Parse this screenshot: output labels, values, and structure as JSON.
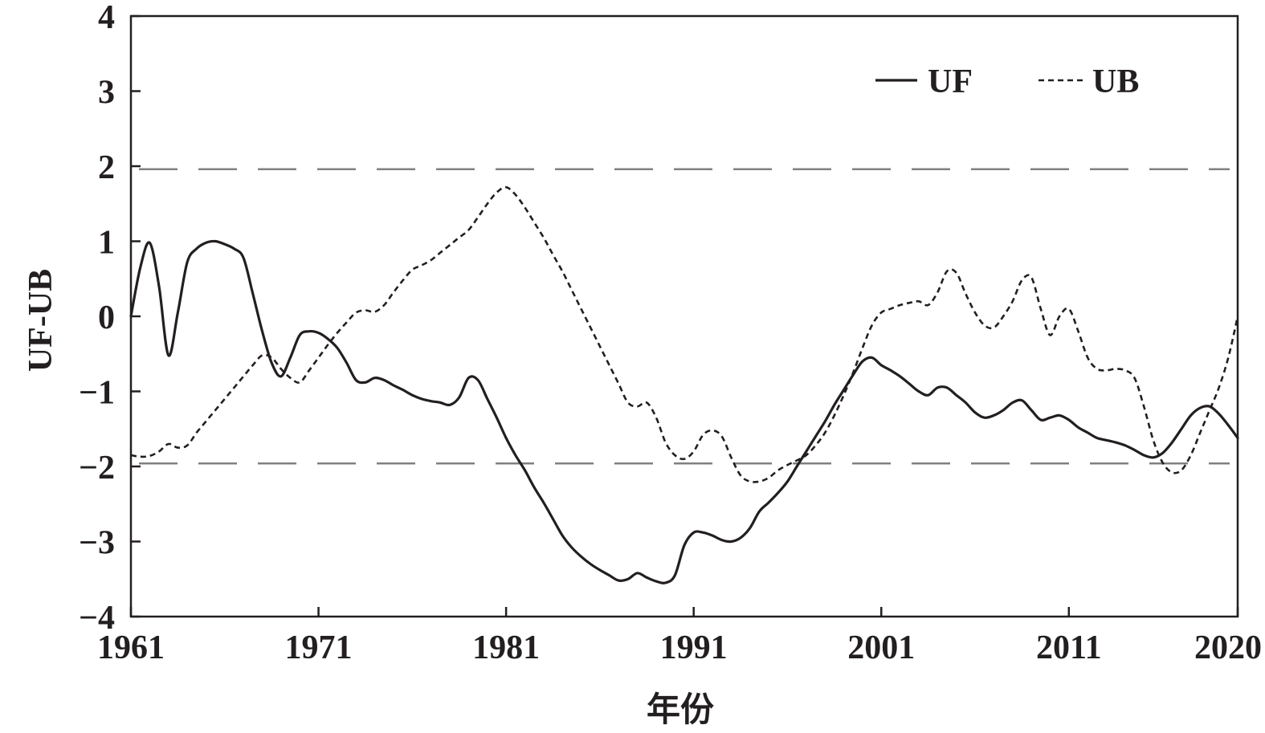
{
  "chart_data": {
    "type": "line",
    "xlabel": "年份",
    "ylabel": "UF-UB",
    "xlim": [
      1961,
      2020
    ],
    "ylim": [
      -4,
      4
    ],
    "x_ticks": [
      1961,
      1971,
      1981,
      1991,
      2001,
      2011,
      2020
    ],
    "x_tick_labels": [
      "1961",
      "1971",
      "1981",
      "1991",
      "2001",
      "2011",
      "2020"
    ],
    "y_ticks": [
      4,
      3,
      2,
      1,
      0,
      -1,
      -2,
      -3,
      -4
    ],
    "y_tick_labels": [
      "4",
      "3",
      "2",
      "1",
      "0",
      "−1",
      "−2",
      "−3",
      "−4"
    ],
    "reference_lines": [
      1.96,
      -1.96
    ],
    "legend_position": "top-right",
    "colors": {
      "series": "#231f20",
      "reference": "#808080",
      "axis": "#231f20"
    },
    "series": [
      {
        "name": "UF",
        "style": "solid",
        "x": [
          1961,
          1961.5,
          1962,
          1962.5,
          1963,
          1963.5,
          1964,
          1964.5,
          1965,
          1965.5,
          1966,
          1966.5,
          1967,
          1967.5,
          1968,
          1968.5,
          1969,
          1969.5,
          1970,
          1970.5,
          1971,
          1971.5,
          1972,
          1972.5,
          1973,
          1973.5,
          1974,
          1974.5,
          1975,
          1975.5,
          1976,
          1976.5,
          1977,
          1977.5,
          1978,
          1978.5,
          1979,
          1979.5,
          1980,
          1980.5,
          1981,
          1981.5,
          1982,
          1982.5,
          1983,
          1983.5,
          1984,
          1984.5,
          1985,
          1985.5,
          1986,
          1986.5,
          1987,
          1987.5,
          1988,
          1988.5,
          1989,
          1989.5,
          1990,
          1990.5,
          1991,
          1991.5,
          1992,
          1992.5,
          1993,
          1993.5,
          1994,
          1994.5,
          1995,
          1995.5,
          1996,
          1996.5,
          1997,
          1997.5,
          1998,
          1998.5,
          1999,
          1999.5,
          2000,
          2000.5,
          2001,
          2001.5,
          2002,
          2002.5,
          2003,
          2003.5,
          2004,
          2004.5,
          2005,
          2005.5,
          2006,
          2006.5,
          2007,
          2007.5,
          2008,
          2008.5,
          2009,
          2009.5,
          2010,
          2010.5,
          2011,
          2011.5,
          2012,
          2012.5,
          2013,
          2013.5,
          2014,
          2014.5,
          2015,
          2015.5,
          2016,
          2016.5,
          2017,
          2017.5,
          2018,
          2018.5,
          2019,
          2019.5,
          2020
        ],
        "y": [
          0.0,
          0.65,
          0.98,
          0.4,
          -0.52,
          0.05,
          0.72,
          0.9,
          0.98,
          1.0,
          0.96,
          0.9,
          0.78,
          0.3,
          -0.2,
          -0.62,
          -0.8,
          -0.55,
          -0.25,
          -0.2,
          -0.22,
          -0.3,
          -0.42,
          -0.62,
          -0.85,
          -0.88,
          -0.82,
          -0.85,
          -0.92,
          -0.98,
          -1.05,
          -1.1,
          -1.13,
          -1.15,
          -1.18,
          -1.08,
          -0.82,
          -0.85,
          -1.1,
          -1.35,
          -1.62,
          -1.85,
          -2.05,
          -2.28,
          -2.48,
          -2.7,
          -2.92,
          -3.08,
          -3.2,
          -3.3,
          -3.38,
          -3.45,
          -3.52,
          -3.5,
          -3.42,
          -3.48,
          -3.53,
          -3.55,
          -3.45,
          -3.05,
          -2.88,
          -2.88,
          -2.92,
          -2.98,
          -3.0,
          -2.95,
          -2.82,
          -2.6,
          -2.48,
          -2.35,
          -2.2,
          -2.0,
          -1.8,
          -1.6,
          -1.4,
          -1.18,
          -0.98,
          -0.78,
          -0.6,
          -0.55,
          -0.65,
          -0.72,
          -0.8,
          -0.9,
          -1.0,
          -1.05,
          -0.95,
          -0.95,
          -1.05,
          -1.15,
          -1.28,
          -1.35,
          -1.32,
          -1.25,
          -1.15,
          -1.12,
          -1.25,
          -1.38,
          -1.35,
          -1.32,
          -1.38,
          -1.48,
          -1.55,
          -1.62,
          -1.65,
          -1.68,
          -1.72,
          -1.78,
          -1.85,
          -1.88,
          -1.82,
          -1.68,
          -1.5,
          -1.32,
          -1.22,
          -1.2,
          -1.3,
          -1.45,
          -1.62
        ]
      },
      {
        "name": "UB",
        "style": "dashed",
        "x": [
          1961,
          1961.5,
          1962,
          1962.5,
          1963,
          1963.5,
          1964,
          1964.5,
          1965,
          1965.5,
          1966,
          1966.5,
          1967,
          1967.5,
          1968,
          1968.5,
          1969,
          1969.5,
          1970,
          1970.5,
          1971,
          1971.5,
          1972,
          1972.5,
          1973,
          1973.5,
          1974,
          1974.5,
          1975,
          1975.5,
          1976,
          1976.5,
          1977,
          1977.5,
          1978,
          1978.5,
          1979,
          1979.5,
          1980,
          1980.5,
          1981,
          1981.5,
          1982,
          1982.5,
          1983,
          1983.5,
          1984,
          1984.5,
          1985,
          1985.5,
          1986,
          1986.5,
          1987,
          1987.5,
          1988,
          1988.5,
          1989,
          1989.5,
          1990,
          1990.5,
          1991,
          1991.5,
          1992,
          1992.5,
          1993,
          1993.5,
          1994,
          1994.5,
          1995,
          1995.5,
          1996,
          1996.5,
          1997,
          1997.5,
          1998,
          1998.5,
          1999,
          1999.5,
          2000,
          2000.5,
          2001,
          2001.5,
          2002,
          2002.5,
          2003,
          2003.5,
          2004,
          2004.5,
          2005,
          2005.5,
          2006,
          2006.5,
          2007,
          2007.5,
          2008,
          2008.5,
          2009,
          2009.5,
          2010,
          2010.5,
          2011,
          2011.5,
          2012,
          2012.5,
          2013,
          2013.5,
          2014,
          2014.5,
          2015,
          2015.5,
          2016,
          2016.5,
          2017,
          2017.5,
          2018,
          2018.5,
          2019,
          2019.5,
          2020
        ],
        "y": [
          -1.85,
          -1.87,
          -1.86,
          -1.8,
          -1.7,
          -1.75,
          -1.72,
          -1.55,
          -1.4,
          -1.25,
          -1.1,
          -0.95,
          -0.8,
          -0.65,
          -0.52,
          -0.55,
          -0.7,
          -0.82,
          -0.88,
          -0.72,
          -0.55,
          -0.38,
          -0.22,
          -0.08,
          0.05,
          0.08,
          0.06,
          0.15,
          0.32,
          0.48,
          0.62,
          0.68,
          0.75,
          0.85,
          0.95,
          1.05,
          1.15,
          1.32,
          1.5,
          1.65,
          1.72,
          1.62,
          1.45,
          1.25,
          1.05,
          0.82,
          0.6,
          0.35,
          0.1,
          -0.15,
          -0.4,
          -0.65,
          -0.9,
          -1.15,
          -1.2,
          -1.15,
          -1.35,
          -1.68,
          -1.85,
          -1.9,
          -1.8,
          -1.58,
          -1.52,
          -1.6,
          -1.88,
          -2.12,
          -2.2,
          -2.2,
          -2.15,
          -2.05,
          -1.98,
          -1.92,
          -1.85,
          -1.72,
          -1.55,
          -1.32,
          -1.05,
          -0.75,
          -0.42,
          -0.12,
          0.05,
          0.1,
          0.15,
          0.18,
          0.2,
          0.15,
          0.32,
          0.6,
          0.58,
          0.3,
          0.05,
          -0.12,
          -0.15,
          0.0,
          0.2,
          0.48,
          0.52,
          0.1,
          -0.25,
          0.0,
          0.1,
          -0.2,
          -0.55,
          -0.7,
          -0.72,
          -0.7,
          -0.72,
          -0.82,
          -1.2,
          -1.65,
          -1.95,
          -2.08,
          -2.05,
          -1.85,
          -1.55,
          -1.25,
          -0.95,
          -0.55,
          0.0
        ]
      }
    ]
  }
}
